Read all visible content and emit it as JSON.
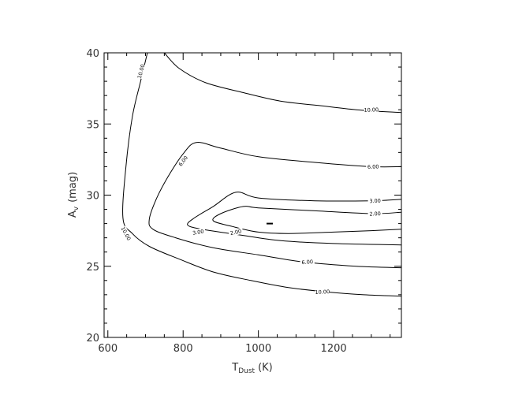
{
  "chart_data": {
    "type": "contour",
    "xlabel": {
      "main": "T",
      "sub": "Dust",
      "unit": "(K)"
    },
    "ylabel": {
      "main": "A",
      "sub": "v",
      "unit": "(mag)"
    },
    "xlim": [
      590,
      1380
    ],
    "ylim": [
      20,
      40
    ],
    "xticks": [
      600,
      800,
      1000,
      1200
    ],
    "yticks": [
      20,
      25,
      30,
      35,
      40
    ],
    "minimum_marker": {
      "x": 1030,
      "y": 28.0
    },
    "contours": [
      {
        "level": "10.00",
        "segments": [
          [
            [
              750,
              40.0
            ],
            [
              790,
              38.9
            ],
            [
              860,
              37.9
            ],
            [
              960,
              37.2
            ],
            [
              1060,
              36.6
            ],
            [
              1160,
              36.3
            ],
            [
              1260,
              36.0
            ],
            [
              1380,
              35.8
            ]
          ],
          [
            [
              1380,
              22.9
            ],
            [
              1280,
              23.0
            ],
            [
              1180,
              23.2
            ],
            [
              1080,
              23.5
            ],
            [
              980,
              24.0
            ],
            [
              880,
              24.6
            ],
            [
              790,
              25.5
            ],
            [
              710,
              26.4
            ],
            [
              665,
              27.3
            ],
            [
              640,
              28.4
            ],
            [
              648,
              32.0
            ],
            [
              665,
              35.5
            ],
            [
              687,
              38.0
            ],
            [
              705,
              40.0
            ]
          ]
        ],
        "labels": [
          {
            "text": "10.00",
            "x": 1300,
            "y": 36.0,
            "angle": -2
          },
          {
            "text": "10.00",
            "x": 1170,
            "y": 23.2,
            "angle": -3
          },
          {
            "text": "10.00",
            "x": 648,
            "y": 27.3,
            "angle": 62
          },
          {
            "text": "10.00",
            "x": 688,
            "y": 38.7,
            "angle": -75
          }
        ]
      },
      {
        "level": "6.00",
        "segments": [
          [
            [
              1380,
              32.0
            ],
            [
              1300,
              32.0
            ],
            [
              1150,
              32.3
            ],
            [
              1000,
              32.7
            ],
            [
              900,
              33.3
            ],
            [
              835,
              33.7
            ],
            [
              800,
              32.9
            ],
            [
              760,
              31.3
            ],
            [
              730,
              29.8
            ],
            [
              710,
              28.3
            ],
            [
              720,
              27.6
            ],
            [
              780,
              27.0
            ],
            [
              880,
              26.3
            ],
            [
              1000,
              25.8
            ],
            [
              1120,
              25.3
            ],
            [
              1260,
              25.0
            ],
            [
              1380,
              24.9
            ]
          ]
        ],
        "labels": [
          {
            "text": "6.00",
            "x": 1305,
            "y": 32.0,
            "angle": -2
          },
          {
            "text": "6.00",
            "x": 1130,
            "y": 25.3,
            "angle": -4
          },
          {
            "text": "6.00",
            "x": 800,
            "y": 32.4,
            "angle": -52
          }
        ]
      },
      {
        "level": "3.00",
        "segments": [
          [
            [
              1380,
              29.7
            ],
            [
              1300,
              29.6
            ],
            [
              1150,
              29.6
            ],
            [
              1000,
              29.8
            ],
            [
              940,
              30.2
            ],
            [
              880,
              29.2
            ],
            [
              830,
              28.4
            ],
            [
              812,
              27.9
            ],
            [
              850,
              27.6
            ],
            [
              950,
              27.2
            ],
            [
              1060,
              26.8
            ],
            [
              1200,
              26.6
            ],
            [
              1380,
              26.5
            ]
          ]
        ],
        "labels": [
          {
            "text": "3.00",
            "x": 1310,
            "y": 29.6,
            "angle": -2
          },
          {
            "text": "3.00",
            "x": 840,
            "y": 27.4,
            "angle": -10
          }
        ]
      },
      {
        "level": "2.00",
        "segments": [
          [
            [
              1380,
              28.8
            ],
            [
              1300,
              28.7
            ],
            [
              1150,
              28.9
            ],
            [
              1000,
              29.1
            ],
            [
              960,
              29.2
            ],
            [
              900,
              28.7
            ],
            [
              880,
              28.2
            ],
            [
              930,
              27.8
            ],
            [
              1000,
              27.4
            ],
            [
              1080,
              27.3
            ],
            [
              1200,
              27.4
            ],
            [
              1300,
              27.5
            ],
            [
              1380,
              27.6
            ]
          ]
        ],
        "labels": [
          {
            "text": "2.00",
            "x": 1310,
            "y": 28.7,
            "angle": -2
          },
          {
            "text": "2.00",
            "x": 940,
            "y": 27.4,
            "angle": -12
          }
        ]
      }
    ]
  }
}
